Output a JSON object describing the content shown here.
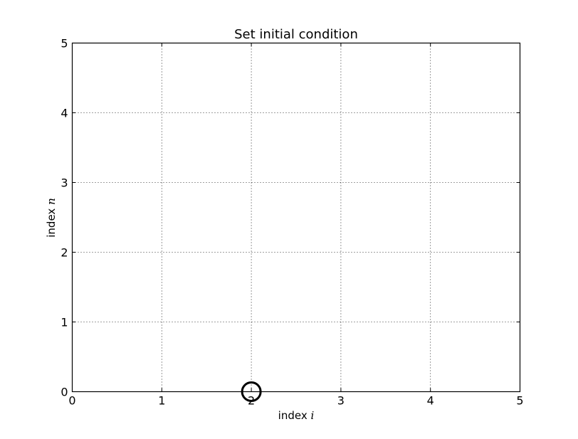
{
  "chart_data": {
    "type": "scatter",
    "title": "Set initial condition",
    "xlabel": {
      "prefix": "index",
      "symbol": "i"
    },
    "ylabel": {
      "prefix": "index",
      "symbol": "n"
    },
    "xlim": [
      0,
      5
    ],
    "ylim": [
      0,
      5
    ],
    "xticks": [
      0,
      1,
      2,
      3,
      4,
      5
    ],
    "yticks": [
      0,
      1,
      2,
      3,
      4,
      5
    ],
    "grid": true,
    "points": [
      {
        "x": 2,
        "y": 0,
        "marker": "open-circle"
      }
    ]
  }
}
